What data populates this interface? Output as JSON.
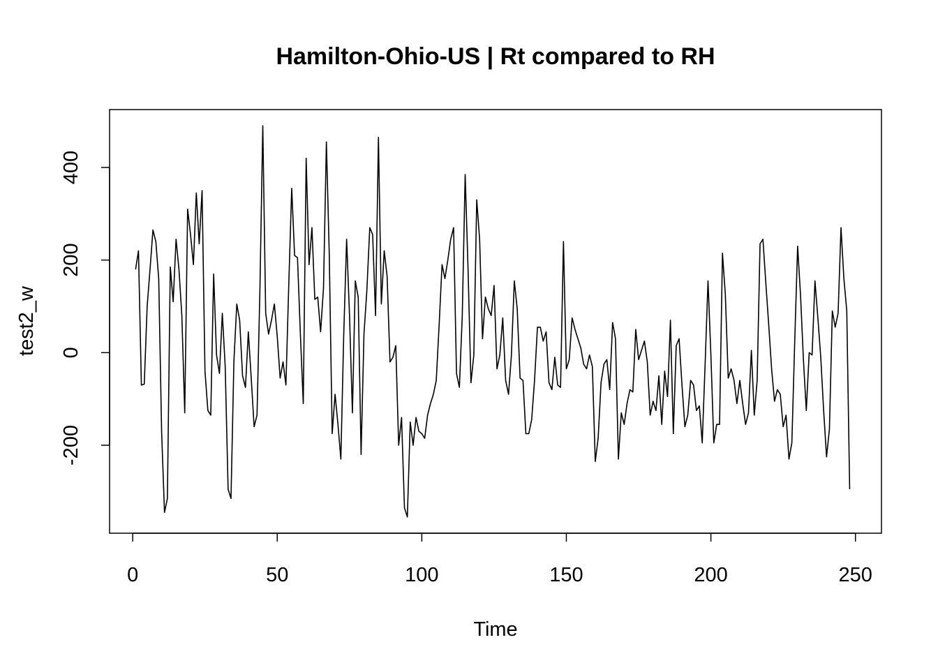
{
  "chart_data": {
    "type": "line",
    "title": "Hamilton-Ohio-US | Rt compared to RH",
    "xlabel": "Time",
    "ylabel": "test2_w",
    "xlim": [
      -8,
      259
    ],
    "ylim": [
      -390,
      525
    ],
    "xticks": [
      0,
      50,
      100,
      150,
      200,
      250
    ],
    "yticks": [
      -200,
      0,
      200,
      400
    ],
    "xtick_labels": [
      "0",
      "50",
      "100",
      "150",
      "200",
      "250"
    ],
    "ytick_labels": [
      "-200",
      "0",
      "200",
      "400"
    ],
    "grid": false,
    "line_color": "#000000",
    "series": [
      {
        "x": [
          1,
          2,
          3,
          4,
          5,
          6,
          7,
          8,
          9,
          10,
          11,
          12,
          13,
          14,
          15,
          16,
          17,
          18,
          19,
          20,
          21,
          22,
          23,
          24,
          25,
          26,
          27,
          28,
          29,
          30,
          31,
          32,
          33,
          34,
          35,
          36,
          37,
          38,
          39,
          40,
          41,
          42,
          43,
          44,
          45,
          46,
          47,
          48,
          49,
          50,
          51,
          52,
          53,
          54,
          55,
          56,
          57,
          58,
          59,
          60,
          61,
          62,
          63,
          64,
          65,
          66,
          67,
          68,
          69,
          70,
          71,
          72,
          73,
          74,
          75,
          76,
          77,
          78,
          79,
          80,
          81,
          82,
          83,
          84,
          85,
          86,
          87,
          88,
          89,
          90,
          91,
          92,
          93,
          94,
          95,
          96,
          97,
          98,
          99,
          100,
          101,
          102,
          103,
          104,
          105,
          106,
          107,
          108,
          109,
          110,
          111,
          112,
          113,
          114,
          115,
          116,
          117,
          118,
          119,
          120,
          121,
          122,
          123,
          124,
          125,
          126,
          127,
          128,
          129,
          130,
          131,
          132,
          133,
          134,
          135,
          136,
          137,
          138,
          139,
          140,
          141,
          142,
          143,
          144,
          145,
          146,
          147,
          148,
          149,
          150,
          151,
          152,
          153,
          154,
          155,
          156,
          157,
          158,
          159,
          160,
          161,
          162,
          163,
          164,
          165,
          166,
          167,
          168,
          169,
          170,
          171,
          172,
          173,
          174,
          175,
          176,
          177,
          178,
          179,
          180,
          181,
          182,
          183,
          184,
          185,
          186,
          187,
          188,
          189,
          190,
          191,
          192,
          193,
          194,
          195,
          196,
          197,
          198,
          199,
          200,
          201,
          202,
          203,
          204,
          205,
          206,
          207,
          208,
          209,
          210,
          211,
          212,
          213,
          214,
          215,
          216,
          217,
          218,
          219,
          220,
          221,
          222,
          223,
          224,
          225,
          226,
          227,
          228,
          229,
          230,
          231,
          232,
          233,
          234,
          235,
          236,
          237,
          238,
          239,
          240,
          241,
          242,
          243,
          244,
          245,
          246,
          247,
          248
        ],
        "values": [
          180,
          220,
          -70,
          -68,
          100,
          180,
          265,
          240,
          160,
          -170,
          -345,
          -315,
          185,
          110,
          245,
          180,
          80,
          -130,
          310,
          255,
          190,
          345,
          235,
          350,
          -40,
          -125,
          -135,
          170,
          -5,
          -45,
          85,
          -30,
          -295,
          -315,
          -20,
          105,
          70,
          -50,
          -75,
          45,
          -55,
          -160,
          -135,
          135,
          490,
          85,
          40,
          70,
          105,
          35,
          -55,
          -20,
          -70,
          150,
          355,
          210,
          205,
          40,
          -110,
          420,
          190,
          270,
          115,
          120,
          45,
          140,
          455,
          210,
          -175,
          -90,
          -155,
          -230,
          40,
          245,
          80,
          -130,
          155,
          120,
          -220,
          40,
          135,
          270,
          255,
          80,
          465,
          105,
          220,
          165,
          -20,
          -10,
          15,
          -200,
          -140,
          -335,
          -355,
          -150,
          -200,
          -140,
          -170,
          -175,
          -185,
          -135,
          -110,
          -90,
          -60,
          60,
          190,
          160,
          200,
          245,
          270,
          -45,
          -75,
          80,
          385,
          180,
          -65,
          -5,
          330,
          245,
          30,
          120,
          95,
          80,
          145,
          -35,
          -5,
          75,
          -60,
          -90,
          -5,
          155,
          95,
          -55,
          -60,
          -175,
          -175,
          -145,
          -60,
          55,
          55,
          25,
          45,
          -65,
          -80,
          -10,
          -70,
          -75,
          240,
          -35,
          -15,
          75,
          50,
          30,
          10,
          -25,
          -35,
          -5,
          -30,
          -235,
          -185,
          -65,
          -25,
          -15,
          -80,
          65,
          30,
          -230,
          -130,
          -155,
          -110,
          -80,
          -85,
          50,
          -15,
          5,
          25,
          -20,
          -135,
          -105,
          -125,
          -50,
          -155,
          -40,
          -95,
          70,
          -175,
          15,
          30,
          -70,
          -160,
          -135,
          -60,
          -70,
          -125,
          -115,
          -195,
          -25,
          155,
          -5,
          -195,
          -155,
          -155,
          215,
          125,
          -55,
          -35,
          -60,
          -110,
          -60,
          -110,
          -155,
          -130,
          5,
          -135,
          -60,
          235,
          245,
          150,
          60,
          -35,
          -105,
          -80,
          -90,
          -160,
          -135,
          -230,
          -195,
          25,
          230,
          125,
          -15,
          -125,
          0,
          -5,
          155,
          75,
          -10,
          -125,
          -225,
          -165,
          90,
          55,
          85,
          270,
          160,
          90,
          -295
        ]
      }
    ]
  }
}
